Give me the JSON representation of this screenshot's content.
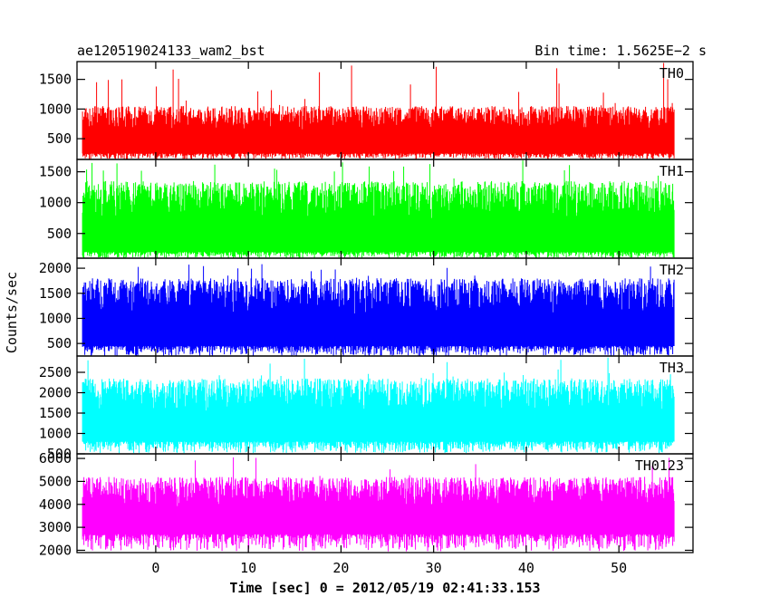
{
  "header": {
    "title": "ae120519024133_wam2_bst",
    "bin_time": "Bin time: 1.5625E−2 s"
  },
  "chart_data": {
    "type": "line",
    "xlabel": "Time [sec] 0 = 2012/05/19 02:41:33.153",
    "ylabel": "Counts/sec",
    "xlim": [
      -8.5,
      58
    ],
    "x_data_range": [
      -7.9,
      56
    ],
    "x_ticks": [
      0,
      10,
      20,
      30,
      40,
      50
    ],
    "panels": [
      {
        "name": "TH0",
        "color": "#ff0000",
        "ylim": [
          150,
          1800
        ],
        "y_ticks": [
          500,
          1000,
          1500
        ],
        "typical_low": 250,
        "typical_high": 1050,
        "max_peak": 1790,
        "min_dip": 150
      },
      {
        "name": "TH1",
        "color": "#00ff00",
        "ylim": [
          100,
          1700
        ],
        "y_ticks": [
          500,
          1000,
          1500
        ],
        "typical_low": 200,
        "typical_high": 1350,
        "max_peak": 1700,
        "min_dip": 100
      },
      {
        "name": "TH2",
        "color": "#0000ff",
        "ylim": [
          250,
          2200
        ],
        "y_ticks": [
          500,
          1000,
          1500,
          2000
        ],
        "typical_low": 450,
        "typical_high": 1800,
        "max_peak": 2200,
        "min_dip": 250
      },
      {
        "name": "TH3",
        "color": "#00ffff",
        "ylim": [
          500,
          2900
        ],
        "y_ticks": [
          500,
          1000,
          1500,
          2000,
          2500
        ],
        "typical_low": 800,
        "typical_high": 2350,
        "max_peak": 2900,
        "min_dip": 520
      },
      {
        "name": "TH0123",
        "color": "#ff00ff",
        "ylim": [
          1900,
          6200
        ],
        "y_ticks": [
          2000,
          3000,
          4000,
          5000,
          6000
        ],
        "typical_low": 2700,
        "typical_high": 5200,
        "max_peak": 6100,
        "min_dip": 1950
      }
    ]
  }
}
